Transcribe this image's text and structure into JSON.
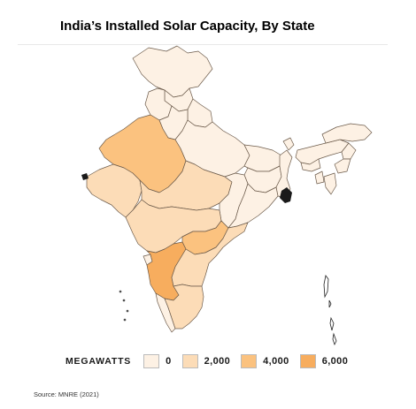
{
  "title": "India’s Installed Solar Capacity, By State",
  "source": "Source: MNRE (2021)",
  "legend": {
    "title": "MEGAWATTS",
    "items": [
      {
        "label": "0",
        "color": "#fdf1e4"
      },
      {
        "label": "2,000",
        "color": "#fcdcb7"
      },
      {
        "label": "4,000",
        "color": "#fbc27f"
      },
      {
        "label": "6,000",
        "color": "#f7ad5e"
      }
    ]
  },
  "regions": [
    {
      "name": "Jammu and Kashmir",
      "level": 0
    },
    {
      "name": "Himachal Pradesh",
      "level": 0
    },
    {
      "name": "Punjab",
      "level": 0
    },
    {
      "name": "Haryana",
      "level": 0
    },
    {
      "name": "Uttarakhand",
      "level": 0
    },
    {
      "name": "Rajasthan",
      "level": 2
    },
    {
      "name": "Uttar Pradesh",
      "level": 0
    },
    {
      "name": "Gujarat",
      "level": 1
    },
    {
      "name": "Madhya Pradesh",
      "level": 1
    },
    {
      "name": "Bihar",
      "level": 0
    },
    {
      "name": "Jharkhand",
      "level": 0
    },
    {
      "name": "West Bengal",
      "level": 0
    },
    {
      "name": "Chhattisgarh",
      "level": 0
    },
    {
      "name": "Odisha",
      "level": 0
    },
    {
      "name": "Maharashtra",
      "level": 1
    },
    {
      "name": "Telangana",
      "level": 2
    },
    {
      "name": "Andhra Pradesh",
      "level": 1
    },
    {
      "name": "Karnataka",
      "level": 3
    },
    {
      "name": "Goa",
      "level": 0
    },
    {
      "name": "Kerala",
      "level": 0
    },
    {
      "name": "Tamil Nadu",
      "level": 1
    },
    {
      "name": "Sikkim",
      "level": 0
    },
    {
      "name": "Assam",
      "level": 0
    },
    {
      "name": "Arunachal Pradesh",
      "level": 0
    },
    {
      "name": "Meghalaya",
      "level": 0
    },
    {
      "name": "Nagaland",
      "level": 0
    },
    {
      "name": "Manipur",
      "level": 0
    },
    {
      "name": "Mizoram",
      "level": 0
    },
    {
      "name": "Tripura",
      "level": 0
    }
  ]
}
